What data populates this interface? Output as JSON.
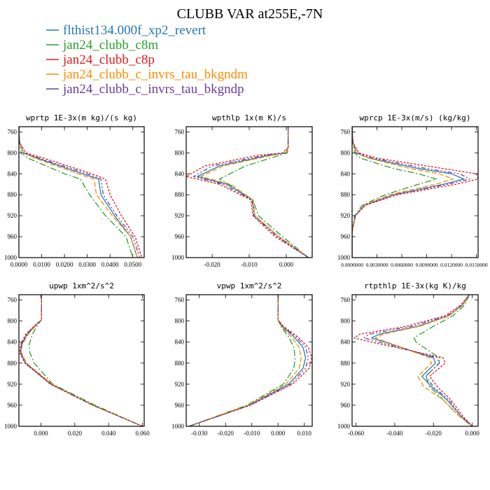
{
  "figure": {
    "title": "CLUBB VAR at255E,-7N",
    "legend": [
      {
        "label": "flthist134.000f_xp2_revert",
        "color": "#2878b5"
      },
      {
        "label": "jan24_clubb_c8m",
        "color": "#2ca02c"
      },
      {
        "label": "jan24_clubb_c8p",
        "color": "#e41a1c"
      },
      {
        "label": "jan24_clubb_c_invrs_tau_bkgndm",
        "color": "#ff8c00"
      },
      {
        "label": "jan24_clubb_c_invrs_tau_bkgndp",
        "color": "#6a3d9a"
      }
    ]
  },
  "chart_data": [
    {
      "type": "line",
      "title": "wprtp  1E-3x(m kg)/(s kg)",
      "xlim": [
        0,
        0.055
      ],
      "ylim": [
        1000,
        750
      ],
      "y_reversed": true,
      "xticks": [
        0,
        0.01,
        0.02,
        0.03,
        0.04,
        0.05
      ],
      "xtick_labels": [
        "0.0000",
        "0.0100",
        "0.0200",
        "0.0300",
        "0.0400",
        "0.0500"
      ],
      "yticks": [
        760,
        800,
        840,
        880,
        920,
        960,
        1000
      ],
      "series": [
        {
          "color": "#2878b5",
          "y": [
            750,
            780,
            800,
            810,
            840,
            850,
            880,
            920,
            960,
            1000
          ],
          "x": [
            0,
            0.0003,
            0.002,
            0.008,
            0.028,
            0.035,
            0.036,
            0.042,
            0.049,
            0.052
          ]
        },
        {
          "color": "#2ca02c",
          "y": [
            750,
            780,
            800,
            810,
            840,
            850,
            880,
            920,
            960,
            1000
          ],
          "x": [
            0,
            0.0003,
            0.001,
            0.004,
            0.02,
            0.027,
            0.031,
            0.038,
            0.047,
            0.05
          ]
        },
        {
          "color": "#e41a1c",
          "y": [
            750,
            780,
            800,
            810,
            840,
            850,
            880,
            920,
            960,
            1000
          ],
          "x": [
            0,
            0.0003,
            0.003,
            0.011,
            0.032,
            0.038,
            0.04,
            0.045,
            0.051,
            0.054
          ]
        },
        {
          "color": "#ff8c00",
          "y": [
            750,
            780,
            800,
            810,
            840,
            850,
            880,
            920,
            960,
            1000
          ],
          "x": [
            0,
            0.0003,
            0.002,
            0.007,
            0.026,
            0.033,
            0.034,
            0.041,
            0.049,
            0.052
          ]
        },
        {
          "color": "#6a3d9a",
          "y": [
            750,
            780,
            800,
            810,
            840,
            850,
            880,
            920,
            960,
            1000
          ],
          "x": [
            0,
            0.0003,
            0.002,
            0.009,
            0.03,
            0.036,
            0.037,
            0.043,
            0.05,
            0.053
          ]
        }
      ]
    },
    {
      "type": "line",
      "title": "wpthlp  1x(m K)/s",
      "xlim": [
        -0.027,
        0.007
      ],
      "ylim": [
        1000,
        750
      ],
      "y_reversed": true,
      "xticks": [
        -0.02,
        -0.01,
        0
      ],
      "xtick_labels": [
        "-0.020",
        "-0.010",
        "0.000"
      ],
      "yticks": [
        760,
        800,
        840,
        880,
        920,
        960,
        1000
      ],
      "series": [
        {
          "color": "#2878b5",
          "y": [
            750,
            790,
            800,
            805,
            825,
            845,
            860,
            890,
            920,
            960,
            1000
          ],
          "x": [
            0.0005,
            0.0005,
            0,
            -0.005,
            -0.018,
            -0.024,
            -0.016,
            -0.009,
            -0.0085,
            -0.002,
            0.006
          ]
        },
        {
          "color": "#2ca02c",
          "y": [
            750,
            790,
            800,
            805,
            825,
            850,
            870,
            890,
            920,
            960,
            1000
          ],
          "x": [
            0.0005,
            0.0005,
            0.0003,
            -0.002,
            -0.011,
            -0.018,
            -0.013,
            -0.009,
            -0.0075,
            -0.001,
            0.006
          ]
        },
        {
          "color": "#e41a1c",
          "y": [
            750,
            790,
            800,
            805,
            825,
            845,
            860,
            890,
            920,
            960,
            1000
          ],
          "x": [
            0.0005,
            0.0005,
            -0.001,
            -0.008,
            -0.022,
            -0.027,
            -0.018,
            -0.0095,
            -0.009,
            -0.003,
            0.006
          ]
        },
        {
          "color": "#ff8c00",
          "y": [
            750,
            790,
            800,
            805,
            825,
            845,
            860,
            890,
            920,
            960,
            1000
          ],
          "x": [
            0.0005,
            0.0005,
            0,
            -0.004,
            -0.017,
            -0.023,
            -0.015,
            -0.009,
            -0.0085,
            -0.002,
            0.006
          ]
        },
        {
          "color": "#6a3d9a",
          "y": [
            750,
            790,
            800,
            805,
            825,
            845,
            860,
            890,
            920,
            960,
            1000
          ],
          "x": [
            0.0005,
            0.0005,
            -0.0005,
            -0.006,
            -0.02,
            -0.025,
            -0.017,
            -0.0092,
            -0.0088,
            -0.0025,
            0.006
          ]
        }
      ]
    },
    {
      "type": "line",
      "title": "wprcp  1E-3x(m/s) (kg/kg)",
      "xlim": [
        0,
        0.0152
      ],
      "ylim": [
        1000,
        750
      ],
      "y_reversed": true,
      "xticks": [
        0,
        0.003,
        0.006,
        0.009,
        0.012,
        0.015
      ],
      "xtick_labels": [
        "0.0000000",
        "0.0030000",
        "0.0060000",
        "0.0090000",
        "0.0120000",
        "0.0150000"
      ],
      "yticks": [
        760,
        800,
        840,
        880,
        920,
        960,
        1000
      ],
      "series": [
        {
          "color": "#2878b5",
          "y": [
            750,
            780,
            800,
            810,
            830,
            840,
            850,
            860,
            880,
            900,
            920,
            950,
            1000
          ],
          "x": [
            0,
            0.0001,
            0.0005,
            0.002,
            0.008,
            0.012,
            0.0135,
            0.011,
            0.005,
            0.0015,
            0.0004,
            0,
            0
          ]
        },
        {
          "color": "#2ca02c",
          "y": [
            750,
            780,
            800,
            810,
            830,
            840,
            850,
            860,
            880,
            900,
            920,
            950,
            1000
          ],
          "x": [
            0,
            0.0001,
            0.0003,
            0.001,
            0.005,
            0.008,
            0.0102,
            0.008,
            0.004,
            0.0012,
            0.0003,
            0,
            0
          ]
        },
        {
          "color": "#e41a1c",
          "y": [
            750,
            780,
            800,
            810,
            830,
            840,
            850,
            860,
            880,
            900,
            920,
            950,
            1000
          ],
          "x": [
            0,
            0.0001,
            0.0008,
            0.003,
            0.011,
            0.015,
            0.0152,
            0.0125,
            0.0055,
            0.0016,
            0.0004,
            0,
            0
          ]
        },
        {
          "color": "#ff8c00",
          "y": [
            750,
            780,
            800,
            810,
            830,
            840,
            850,
            860,
            880,
            900,
            920,
            950,
            1000
          ],
          "x": [
            0,
            0.0001,
            0.0005,
            0.002,
            0.007,
            0.0105,
            0.0122,
            0.01,
            0.0045,
            0.0014,
            0.0004,
            0,
            0
          ]
        },
        {
          "color": "#6a3d9a",
          "y": [
            750,
            780,
            800,
            810,
            830,
            840,
            850,
            860,
            880,
            900,
            920,
            950,
            1000
          ],
          "x": [
            0,
            0.0001,
            0.0006,
            0.0025,
            0.009,
            0.013,
            0.0142,
            0.0115,
            0.005,
            0.0015,
            0.0004,
            0,
            0
          ]
        }
      ]
    },
    {
      "type": "line",
      "title": "upwp  1xm^2/s^2",
      "xlim": [
        -0.013,
        0.061
      ],
      "ylim": [
        1000,
        750
      ],
      "y_reversed": true,
      "xticks": [
        0,
        0.02,
        0.04,
        0.06
      ],
      "xtick_labels": [
        "0.000",
        "0.020",
        "0.040",
        "0.060"
      ],
      "yticks": [
        760,
        800,
        840,
        880,
        920,
        960,
        1000
      ],
      "series": [
        {
          "color": "#2878b5",
          "y": [
            750,
            798,
            805,
            825,
            845,
            860,
            880,
            920,
            960,
            1000
          ],
          "x": [
            0.0003,
            0.0003,
            -0.002,
            -0.008,
            -0.0115,
            -0.012,
            -0.009,
            0.006,
            0.031,
            0.06
          ]
        },
        {
          "color": "#2ca02c",
          "y": [
            750,
            798,
            805,
            825,
            845,
            860,
            880,
            920,
            960,
            1000
          ],
          "x": [
            0.0003,
            0.0003,
            -0.0015,
            -0.005,
            -0.007,
            -0.0065,
            -0.004,
            0.007,
            0.032,
            0.06
          ]
        },
        {
          "color": "#e41a1c",
          "y": [
            750,
            798,
            805,
            825,
            845,
            860,
            880,
            920,
            960,
            1000
          ],
          "x": [
            0.0003,
            0.0003,
            -0.0025,
            -0.009,
            -0.012,
            -0.0125,
            -0.0095,
            0.0055,
            0.0305,
            0.06
          ]
        },
        {
          "color": "#ff8c00",
          "y": [
            750,
            798,
            805,
            825,
            845,
            860,
            880,
            920,
            960,
            1000
          ],
          "x": [
            0.0003,
            0.0003,
            -0.002,
            -0.0075,
            -0.011,
            -0.0115,
            -0.0085,
            0.0065,
            0.031,
            0.06
          ]
        },
        {
          "color": "#6a3d9a",
          "y": [
            750,
            798,
            805,
            825,
            845,
            860,
            880,
            920,
            960,
            1000
          ],
          "x": [
            0.0003,
            0.0003,
            -0.0022,
            -0.0085,
            -0.0118,
            -0.0122,
            -0.0092,
            0.006,
            0.0308,
            0.06
          ]
        }
      ]
    },
    {
      "type": "line",
      "title": "vpwp  1xm^2/s^2",
      "xlim": [
        -0.035,
        0.013
      ],
      "ylim": [
        1000,
        750
      ],
      "y_reversed": true,
      "xticks": [
        -0.03,
        -0.02,
        -0.01,
        0,
        0.01
      ],
      "xtick_labels": [
        "-0.030",
        "-0.020",
        "-0.010",
        "0.000",
        "0.010"
      ],
      "yticks": [
        760,
        800,
        840,
        880,
        920,
        960,
        1000
      ],
      "series": [
        {
          "color": "#2878b5",
          "y": [
            750,
            798,
            810,
            830,
            850,
            870,
            890,
            920,
            960,
            1000
          ],
          "x": [
            0,
            0,
            0.0015,
            0.006,
            0.0095,
            0.0105,
            0.0095,
            0.004,
            -0.011,
            -0.034
          ]
        },
        {
          "color": "#2ca02c",
          "y": [
            750,
            798,
            810,
            830,
            850,
            870,
            890,
            920,
            960,
            1000
          ],
          "x": [
            0,
            0,
            0.001,
            0.004,
            0.006,
            0.0065,
            0.006,
            0.002,
            -0.012,
            -0.034
          ]
        },
        {
          "color": "#e41a1c",
          "y": [
            750,
            798,
            810,
            830,
            850,
            870,
            890,
            920,
            960,
            1000
          ],
          "x": [
            0,
            0,
            0.002,
            0.0075,
            0.0115,
            0.0128,
            0.0118,
            0.0055,
            -0.0105,
            -0.034
          ]
        },
        {
          "color": "#ff8c00",
          "y": [
            750,
            798,
            810,
            830,
            850,
            870,
            890,
            920,
            960,
            1000
          ],
          "x": [
            0,
            0,
            0.0012,
            0.005,
            0.008,
            0.0088,
            0.008,
            0.003,
            -0.0115,
            -0.034
          ]
        },
        {
          "color": "#6a3d9a",
          "y": [
            750,
            798,
            810,
            830,
            850,
            870,
            890,
            920,
            960,
            1000
          ],
          "x": [
            0,
            0,
            0.0017,
            0.0068,
            0.0105,
            0.0115,
            0.0105,
            0.0048,
            -0.0108,
            -0.034
          ]
        }
      ]
    },
    {
      "type": "line",
      "title": "rtpthlp  1E-3x(kg K)/kg",
      "xlim": [
        -0.062,
        0.003
      ],
      "ylim": [
        1000,
        750
      ],
      "y_reversed": true,
      "xticks": [
        -0.06,
        -0.04,
        -0.02,
        0
      ],
      "xtick_labels": [
        "-0.060",
        "-0.040",
        "-0.020",
        "0.000"
      ],
      "yticks": [
        760,
        800,
        840,
        880,
        920,
        960,
        1000
      ],
      "series": [
        {
          "color": "#2878b5",
          "y": [
            750,
            770,
            790,
            810,
            825,
            832,
            840,
            870,
            880,
            905,
            925,
            950,
            980,
            1000
          ],
          "x": [
            -0.0015,
            -0.005,
            -0.012,
            -0.028,
            -0.048,
            -0.052,
            -0.045,
            -0.02,
            -0.019,
            -0.026,
            -0.021,
            -0.013,
            -0.006,
            0
          ]
        },
        {
          "color": "#2ca02c",
          "y": [
            750,
            770,
            790,
            810,
            825,
            832,
            840,
            870,
            880,
            905,
            925,
            950,
            980,
            1000
          ],
          "x": [
            -0.0015,
            -0.004,
            -0.01,
            -0.02,
            -0.027,
            -0.03,
            -0.029,
            -0.017,
            -0.017,
            -0.024,
            -0.022,
            -0.015,
            -0.007,
            0
          ]
        },
        {
          "color": "#e41a1c",
          "y": [
            750,
            770,
            790,
            810,
            825,
            832,
            840,
            870,
            880,
            905,
            925,
            950,
            980,
            1000
          ],
          "x": [
            -0.0015,
            -0.006,
            -0.014,
            -0.034,
            -0.058,
            -0.061,
            -0.052,
            -0.015,
            -0.014,
            -0.022,
            -0.018,
            -0.011,
            -0.005,
            0
          ]
        },
        {
          "color": "#ff8c00",
          "y": [
            750,
            770,
            790,
            810,
            825,
            832,
            840,
            870,
            880,
            905,
            925,
            950,
            980,
            1000
          ],
          "x": [
            -0.0015,
            -0.005,
            -0.012,
            -0.027,
            -0.046,
            -0.05,
            -0.044,
            -0.022,
            -0.021,
            -0.028,
            -0.025,
            -0.015,
            -0.007,
            0
          ]
        },
        {
          "color": "#6a3d9a",
          "y": [
            750,
            770,
            790,
            810,
            825,
            832,
            840,
            870,
            880,
            905,
            925,
            950,
            980,
            1000
          ],
          "x": [
            -0.0015,
            -0.0055,
            -0.013,
            -0.031,
            -0.053,
            -0.056,
            -0.048,
            -0.018,
            -0.017,
            -0.024,
            -0.02,
            -0.012,
            -0.006,
            0
          ]
        }
      ]
    }
  ]
}
